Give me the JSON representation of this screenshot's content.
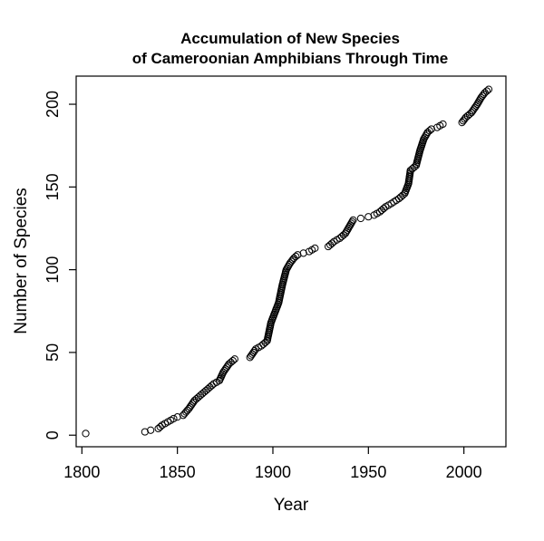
{
  "chart_data": {
    "type": "scatter",
    "title": "Accumulation of New Species",
    "subtitle": "of Cameroonian Amphibians Through Time",
    "xlabel": "Year",
    "ylabel": "Number of Species",
    "xlim": [
      1797,
      2022
    ],
    "ylim": [
      -7,
      217
    ],
    "xticks": [
      "1800",
      "1850",
      "1900",
      "1950",
      "2000"
    ],
    "xtick_values": [
      1800,
      1850,
      1900,
      1950,
      2000
    ],
    "yticks": [
      "0",
      "50",
      "100",
      "150",
      "200"
    ],
    "ytick_values": [
      0,
      50,
      100,
      150,
      200
    ],
    "grid": false,
    "marker": "open-circle",
    "anchors": [
      [
        1802,
        1
      ],
      [
        1833,
        2
      ],
      [
        1836,
        3
      ],
      [
        1840,
        4
      ],
      [
        1842,
        6
      ],
      [
        1845,
        8
      ],
      [
        1848,
        10
      ],
      [
        1850,
        11
      ],
      [
        1853,
        12
      ],
      [
        1856,
        16
      ],
      [
        1859,
        21
      ],
      [
        1862,
        24
      ],
      [
        1866,
        28
      ],
      [
        1869,
        31
      ],
      [
        1872,
        33
      ],
      [
        1874,
        38
      ],
      [
        1877,
        43
      ],
      [
        1880,
        46
      ],
      [
        1888,
        47
      ],
      [
        1891,
        52
      ],
      [
        1894,
        54
      ],
      [
        1897,
        57
      ],
      [
        1899,
        68
      ],
      [
        1901,
        74
      ],
      [
        1903,
        80
      ],
      [
        1905,
        91
      ],
      [
        1907,
        100
      ],
      [
        1909,
        104
      ],
      [
        1911,
        107
      ],
      [
        1913,
        109
      ],
      [
        1916,
        110
      ],
      [
        1919,
        111
      ],
      [
        1922,
        113
      ],
      [
        1929,
        114
      ],
      [
        1932,
        117
      ],
      [
        1935,
        119
      ],
      [
        1938,
        122
      ],
      [
        1940,
        126
      ],
      [
        1942,
        130
      ],
      [
        1946,
        131
      ],
      [
        1950,
        132
      ],
      [
        1953,
        133
      ],
      [
        1956,
        135
      ],
      [
        1959,
        138
      ],
      [
        1962,
        140
      ],
      [
        1966,
        143
      ],
      [
        1969,
        146
      ],
      [
        1971,
        152
      ],
      [
        1972,
        160
      ],
      [
        1975,
        163
      ],
      [
        1977,
        172
      ],
      [
        1979,
        179
      ],
      [
        1981,
        183
      ],
      [
        1983,
        185
      ],
      [
        1986,
        186
      ],
      [
        1989,
        188
      ],
      [
        1999,
        189
      ],
      [
        2001,
        192
      ],
      [
        2004,
        195
      ],
      [
        2007,
        200
      ],
      [
        2009,
        204
      ],
      [
        2011,
        207
      ],
      [
        2013,
        209
      ]
    ]
  }
}
